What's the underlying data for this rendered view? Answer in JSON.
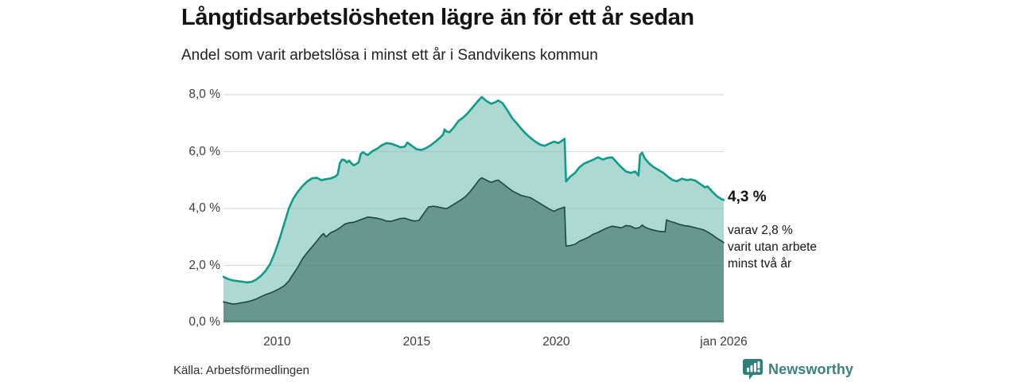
{
  "header": {
    "title": "Långtidsarbetslösheten lägre än för ett år sedan",
    "subtitle": "Andel som varit arbetslösa i minst ett år i Sandvikens kommun"
  },
  "chart_data": {
    "type": "area",
    "title": "Långtidsarbetslösheten lägre än för ett år sedan",
    "xlabel": "",
    "ylabel": "Andel som varit arbetslösa i minst ett år (%)",
    "x_domain": [
      2008.08,
      2026.0
    ],
    "y_domain": [
      0,
      8
    ],
    "grid": true,
    "legend_position": "none",
    "y_ticks": [
      {
        "value": 8,
        "label": "8,0 %"
      },
      {
        "value": 6,
        "label": "6,0 %"
      },
      {
        "value": 4,
        "label": "4,0 %"
      },
      {
        "value": 2,
        "label": "2,0 %"
      },
      {
        "value": 0,
        "label": "0,0 %"
      }
    ],
    "x_ticks": [
      {
        "value": 2010,
        "label": "2010"
      },
      {
        "value": 2015,
        "label": "2015"
      },
      {
        "value": 2020,
        "label": "2020"
      },
      {
        "value": 2026,
        "label": "jan 2026"
      }
    ],
    "series": [
      {
        "name": "Arbetslösa minst ett år",
        "latest_value": "4,3 %",
        "line_color": "#0f9a8a",
        "fill_color": "#7fc6ba",
        "fill_opacity": 0.65,
        "line_width": 2.6,
        "points": [
          [
            2008.08,
            1.6
          ],
          [
            2008.25,
            1.52
          ],
          [
            2008.42,
            1.47
          ],
          [
            2008.58,
            1.45
          ],
          [
            2008.75,
            1.43
          ],
          [
            2008.92,
            1.4
          ],
          [
            2009.08,
            1.42
          ],
          [
            2009.25,
            1.5
          ],
          [
            2009.42,
            1.63
          ],
          [
            2009.58,
            1.8
          ],
          [
            2009.75,
            2.05
          ],
          [
            2009.92,
            2.45
          ],
          [
            2010.08,
            2.9
          ],
          [
            2010.25,
            3.45
          ],
          [
            2010.42,
            4.0
          ],
          [
            2010.58,
            4.35
          ],
          [
            2010.75,
            4.6
          ],
          [
            2010.92,
            4.8
          ],
          [
            2011.08,
            4.95
          ],
          [
            2011.25,
            5.06
          ],
          [
            2011.42,
            5.08
          ],
          [
            2011.58,
            5.0
          ],
          [
            2011.75,
            5.03
          ],
          [
            2011.92,
            5.06
          ],
          [
            2012.08,
            5.12
          ],
          [
            2012.17,
            5.2
          ],
          [
            2012.25,
            5.6
          ],
          [
            2012.33,
            5.72
          ],
          [
            2012.42,
            5.7
          ],
          [
            2012.5,
            5.62
          ],
          [
            2012.58,
            5.68
          ],
          [
            2012.67,
            5.58
          ],
          [
            2012.75,
            5.52
          ],
          [
            2012.83,
            5.56
          ],
          [
            2012.92,
            5.62
          ],
          [
            2013.0,
            5.92
          ],
          [
            2013.08,
            5.98
          ],
          [
            2013.17,
            5.92
          ],
          [
            2013.25,
            5.88
          ],
          [
            2013.42,
            6.02
          ],
          [
            2013.58,
            6.1
          ],
          [
            2013.75,
            6.22
          ],
          [
            2013.92,
            6.3
          ],
          [
            2014.08,
            6.28
          ],
          [
            2014.25,
            6.22
          ],
          [
            2014.42,
            6.15
          ],
          [
            2014.58,
            6.18
          ],
          [
            2014.67,
            6.32
          ],
          [
            2014.83,
            6.2
          ],
          [
            2015.0,
            6.08
          ],
          [
            2015.17,
            6.06
          ],
          [
            2015.33,
            6.12
          ],
          [
            2015.5,
            6.22
          ],
          [
            2015.67,
            6.35
          ],
          [
            2015.83,
            6.48
          ],
          [
            2015.95,
            6.6
          ],
          [
            2016.0,
            6.78
          ],
          [
            2016.08,
            6.7
          ],
          [
            2016.17,
            6.68
          ],
          [
            2016.33,
            6.85
          ],
          [
            2016.5,
            7.08
          ],
          [
            2016.67,
            7.2
          ],
          [
            2016.83,
            7.35
          ],
          [
            2017.0,
            7.55
          ],
          [
            2017.17,
            7.75
          ],
          [
            2017.33,
            7.92
          ],
          [
            2017.5,
            7.78
          ],
          [
            2017.67,
            7.68
          ],
          [
            2017.83,
            7.74
          ],
          [
            2017.92,
            7.8
          ],
          [
            2018.08,
            7.7
          ],
          [
            2018.25,
            7.45
          ],
          [
            2018.42,
            7.18
          ],
          [
            2018.58,
            7.0
          ],
          [
            2018.75,
            6.8
          ],
          [
            2018.92,
            6.62
          ],
          [
            2019.08,
            6.48
          ],
          [
            2019.25,
            6.35
          ],
          [
            2019.42,
            6.25
          ],
          [
            2019.58,
            6.2
          ],
          [
            2019.75,
            6.28
          ],
          [
            2019.92,
            6.35
          ],
          [
            2020.08,
            6.3
          ],
          [
            2020.3,
            6.45
          ],
          [
            2020.35,
            4.95
          ],
          [
            2020.5,
            5.12
          ],
          [
            2020.67,
            5.25
          ],
          [
            2020.83,
            5.45
          ],
          [
            2021.0,
            5.58
          ],
          [
            2021.17,
            5.65
          ],
          [
            2021.33,
            5.72
          ],
          [
            2021.5,
            5.8
          ],
          [
            2021.67,
            5.72
          ],
          [
            2021.83,
            5.78
          ],
          [
            2022.0,
            5.8
          ],
          [
            2022.17,
            5.62
          ],
          [
            2022.33,
            5.45
          ],
          [
            2022.5,
            5.3
          ],
          [
            2022.67,
            5.25
          ],
          [
            2022.83,
            5.3
          ],
          [
            2022.95,
            5.16
          ],
          [
            2023.0,
            5.88
          ],
          [
            2023.08,
            5.96
          ],
          [
            2023.17,
            5.76
          ],
          [
            2023.33,
            5.58
          ],
          [
            2023.5,
            5.45
          ],
          [
            2023.67,
            5.35
          ],
          [
            2023.83,
            5.26
          ],
          [
            2024.0,
            5.12
          ],
          [
            2024.17,
            5.0
          ],
          [
            2024.33,
            4.96
          ],
          [
            2024.5,
            5.05
          ],
          [
            2024.67,
            5.0
          ],
          [
            2024.83,
            5.02
          ],
          [
            2025.0,
            4.97
          ],
          [
            2025.17,
            4.85
          ],
          [
            2025.33,
            4.74
          ],
          [
            2025.42,
            4.78
          ],
          [
            2025.58,
            4.6
          ],
          [
            2025.75,
            4.44
          ],
          [
            2025.92,
            4.33
          ],
          [
            2026.0,
            4.3
          ]
        ]
      },
      {
        "name": "Varav utan arbete minst två år",
        "latest_value": "2,8 %",
        "line_color": "#1d473f",
        "fill_color": "#14463f",
        "fill_opacity": 0.45,
        "line_width": 1.6,
        "points": [
          [
            2008.08,
            0.72
          ],
          [
            2008.25,
            0.68
          ],
          [
            2008.42,
            0.64
          ],
          [
            2008.58,
            0.66
          ],
          [
            2008.75,
            0.69
          ],
          [
            2008.92,
            0.72
          ],
          [
            2009.08,
            0.76
          ],
          [
            2009.25,
            0.82
          ],
          [
            2009.42,
            0.9
          ],
          [
            2009.58,
            0.97
          ],
          [
            2009.75,
            1.03
          ],
          [
            2009.92,
            1.1
          ],
          [
            2010.08,
            1.18
          ],
          [
            2010.25,
            1.28
          ],
          [
            2010.42,
            1.45
          ],
          [
            2010.58,
            1.7
          ],
          [
            2010.75,
            1.95
          ],
          [
            2010.92,
            2.25
          ],
          [
            2011.08,
            2.45
          ],
          [
            2011.25,
            2.65
          ],
          [
            2011.42,
            2.85
          ],
          [
            2011.58,
            3.05
          ],
          [
            2011.67,
            3.12
          ],
          [
            2011.75,
            3.0
          ],
          [
            2011.92,
            3.15
          ],
          [
            2012.08,
            3.22
          ],
          [
            2012.25,
            3.32
          ],
          [
            2012.42,
            3.45
          ],
          [
            2012.58,
            3.5
          ],
          [
            2012.75,
            3.52
          ],
          [
            2012.92,
            3.58
          ],
          [
            2013.08,
            3.64
          ],
          [
            2013.25,
            3.7
          ],
          [
            2013.42,
            3.68
          ],
          [
            2013.58,
            3.66
          ],
          [
            2013.75,
            3.62
          ],
          [
            2013.92,
            3.56
          ],
          [
            2014.08,
            3.55
          ],
          [
            2014.25,
            3.6
          ],
          [
            2014.42,
            3.65
          ],
          [
            2014.58,
            3.66
          ],
          [
            2014.75,
            3.6
          ],
          [
            2014.92,
            3.56
          ],
          [
            2015.08,
            3.58
          ],
          [
            2015.25,
            3.82
          ],
          [
            2015.42,
            4.05
          ],
          [
            2015.58,
            4.08
          ],
          [
            2015.75,
            4.06
          ],
          [
            2015.92,
            4.02
          ],
          [
            2016.08,
            4.0
          ],
          [
            2016.25,
            4.1
          ],
          [
            2016.42,
            4.2
          ],
          [
            2016.58,
            4.3
          ],
          [
            2016.75,
            4.42
          ],
          [
            2016.92,
            4.6
          ],
          [
            2017.08,
            4.8
          ],
          [
            2017.25,
            5.02
          ],
          [
            2017.33,
            5.08
          ],
          [
            2017.5,
            5.0
          ],
          [
            2017.67,
            4.92
          ],
          [
            2017.83,
            4.98
          ],
          [
            2017.92,
            5.0
          ],
          [
            2018.08,
            4.88
          ],
          [
            2018.25,
            4.75
          ],
          [
            2018.42,
            4.62
          ],
          [
            2018.58,
            4.54
          ],
          [
            2018.75,
            4.46
          ],
          [
            2018.92,
            4.42
          ],
          [
            2019.08,
            4.38
          ],
          [
            2019.25,
            4.28
          ],
          [
            2019.42,
            4.18
          ],
          [
            2019.58,
            4.08
          ],
          [
            2019.75,
            3.98
          ],
          [
            2019.92,
            3.9
          ],
          [
            2020.08,
            3.98
          ],
          [
            2020.3,
            4.05
          ],
          [
            2020.35,
            2.68
          ],
          [
            2020.5,
            2.7
          ],
          [
            2020.67,
            2.74
          ],
          [
            2020.83,
            2.85
          ],
          [
            2021.0,
            2.92
          ],
          [
            2021.17,
            3.0
          ],
          [
            2021.33,
            3.1
          ],
          [
            2021.5,
            3.16
          ],
          [
            2021.67,
            3.25
          ],
          [
            2021.83,
            3.32
          ],
          [
            2022.0,
            3.38
          ],
          [
            2022.17,
            3.35
          ],
          [
            2022.33,
            3.32
          ],
          [
            2022.5,
            3.4
          ],
          [
            2022.67,
            3.38
          ],
          [
            2022.83,
            3.3
          ],
          [
            2023.0,
            3.34
          ],
          [
            2023.08,
            3.42
          ],
          [
            2023.17,
            3.35
          ],
          [
            2023.33,
            3.28
          ],
          [
            2023.5,
            3.24
          ],
          [
            2023.67,
            3.2
          ],
          [
            2023.9,
            3.18
          ],
          [
            2023.95,
            3.6
          ],
          [
            2024.08,
            3.55
          ],
          [
            2024.25,
            3.5
          ],
          [
            2024.42,
            3.44
          ],
          [
            2024.58,
            3.4
          ],
          [
            2024.75,
            3.38
          ],
          [
            2024.92,
            3.34
          ],
          [
            2025.08,
            3.3
          ],
          [
            2025.25,
            3.26
          ],
          [
            2025.42,
            3.18
          ],
          [
            2025.58,
            3.08
          ],
          [
            2025.75,
            2.96
          ],
          [
            2025.92,
            2.86
          ],
          [
            2026.0,
            2.8
          ]
        ]
      }
    ]
  },
  "annotations": {
    "value_label": "4,3 %",
    "note_lines": [
      "varav 2,8 %",
      "varit utan arbete",
      "minst två år"
    ]
  },
  "footer": {
    "source": "Källa: Arbetsförmedlingen",
    "brand": "Newsworthy"
  },
  "colors": {
    "accent_teal": "#0f9a8a",
    "light_area": "#aedad2",
    "dark_area": "#6f9a93",
    "dark_line": "#1d473f",
    "axis_line": "#578880",
    "gridline": "#dcdcdc",
    "brand_teal": "#2e7f78"
  }
}
